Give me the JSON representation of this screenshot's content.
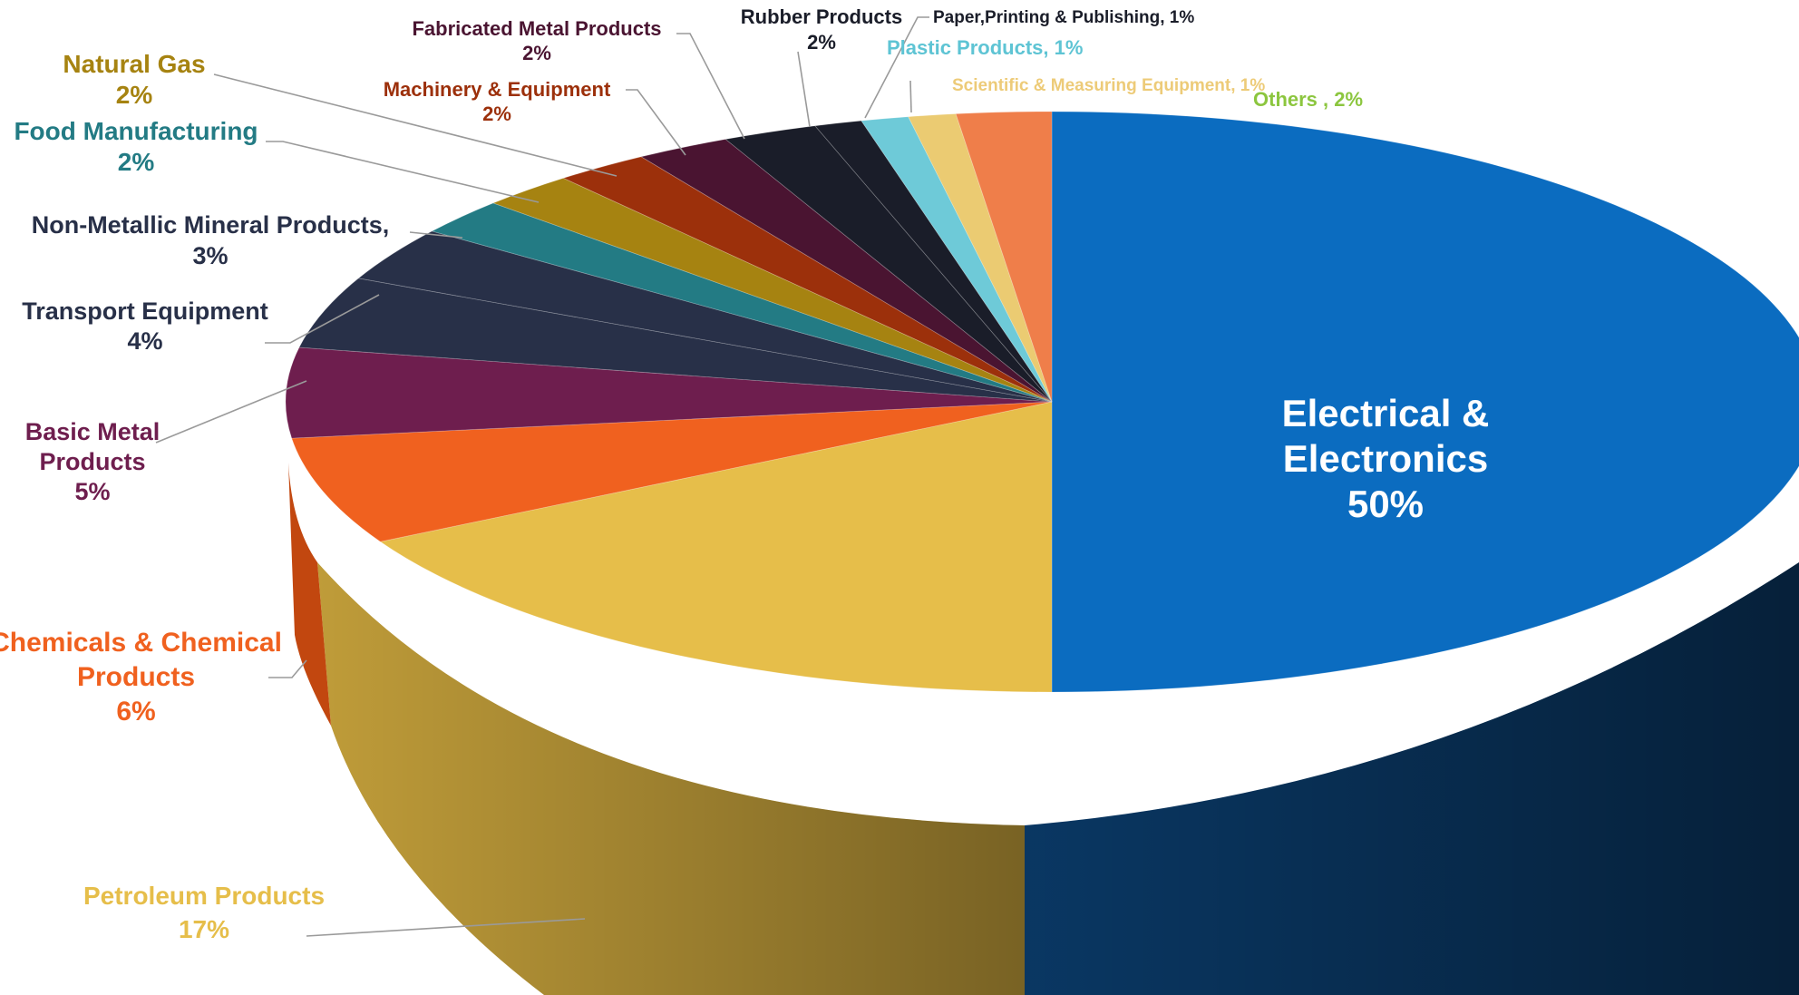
{
  "chart_data": {
    "type": "pie",
    "title": "",
    "three_d": true,
    "legend": "none",
    "slices": [
      {
        "label": "Electrical & Electronics",
        "line1": "Electrical &",
        "line2": "Electronics",
        "pct_text": "50%",
        "value": 50,
        "color": "#0B6CC0",
        "text_color": "#FFFFFF"
      },
      {
        "label": "Petroleum Products",
        "line1": "Petroleum Products",
        "line2": "",
        "pct_text": "17%",
        "value": 17,
        "color": "#E6BE4A",
        "text_color": "#E6BE4A"
      },
      {
        "label": "Chemicals & Chemical Products",
        "line1": "Chemicals & Chemical",
        "line2": "Products",
        "pct_text": "6%",
        "value": 6,
        "color": "#F0611F",
        "text_color": "#F0611F"
      },
      {
        "label": "Basic Metal Products",
        "line1": "Basic Metal",
        "line2": "Products",
        "pct_text": "5%",
        "value": 5,
        "color": "#6E1E4E",
        "text_color": "#6E1E4E"
      },
      {
        "label": "Transport Equipment",
        "line1": "Transport Equipment",
        "line2": "",
        "pct_text": "4%",
        "value": 4,
        "color": "#283048",
        "text_color": "#283048"
      },
      {
        "label": "Non-Metallic Mineral Products",
        "line1": "Non-Metallic Mineral Products,",
        "line2": "",
        "pct_text": "3%",
        "value": 3,
        "color": "#283048",
        "text_color": "#283048"
      },
      {
        "label": "Food Manufacturing",
        "line1": "Food Manufacturing",
        "line2": "",
        "pct_text": "2%",
        "value": 2,
        "color": "#237B84",
        "text_color": "#237B84"
      },
      {
        "label": "Natural Gas",
        "line1": "Natural Gas",
        "line2": "",
        "pct_text": "2%",
        "value": 2,
        "color": "#A68311",
        "text_color": "#A68311"
      },
      {
        "label": "Machinery & Equipment",
        "line1": "Machinery & Equipment",
        "line2": "",
        "pct_text": "2%",
        "value": 2,
        "color": "#9C300B",
        "text_color": "#9C300B"
      },
      {
        "label": "Fabricated Metal Products",
        "line1": "Fabricated Metal Products",
        "line2": "",
        "pct_text": "2%",
        "value": 2,
        "color": "#4A1431",
        "text_color": "#4A1431"
      },
      {
        "label": "Rubber Products",
        "line1": "Rubber Products",
        "line2": "",
        "pct_text": "2%",
        "value": 2,
        "color": "#1A1D29",
        "text_color": "#1A1D29"
      },
      {
        "label": "Paper,Printing & Publishing",
        "line1": "Paper,Printing & Publishing, 1%",
        "line2": "",
        "pct_text": "",
        "value": 1,
        "color": "#1A1D29",
        "text_color": "#1A1D29"
      },
      {
        "label": "Plastic Products",
        "line1": "Plastic Products, 1%",
        "line2": "",
        "pct_text": "",
        "value": 1,
        "color": "#6ECAD8",
        "text_color": "#5EC4D4"
      },
      {
        "label": "Scientific & Measuring Equipment",
        "line1": "Scientific & Measuring Equipment, 1%",
        "line2": "",
        "pct_text": "",
        "value": 1,
        "color": "#EBCB72",
        "text_color": "#EDCB78"
      },
      {
        "label": "Others",
        "line1": "Others , 2%",
        "line2": "",
        "pct_text": "",
        "value": 2,
        "color": "#EF7E4A",
        "text_color": "#8CC63F"
      }
    ]
  }
}
